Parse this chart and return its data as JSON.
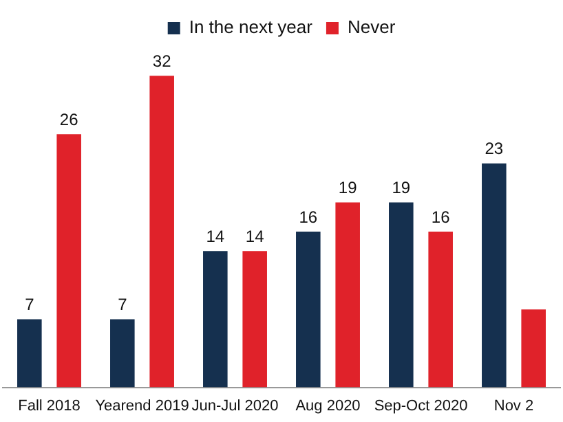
{
  "chart_data": {
    "type": "bar",
    "categories": [
      "Fall 2018",
      "Yearend 2019",
      "Jun-Jul 2020",
      "Aug 2020",
      "Sep-Oct 2020",
      "Nov 2"
    ],
    "series": [
      {
        "name": "In the next year",
        "color": "#15304f",
        "values": [
          7,
          7,
          14,
          16,
          19,
          23
        ],
        "value_labels": [
          "7",
          "7",
          "14",
          "16",
          "19",
          "23"
        ]
      },
      {
        "name": "Never",
        "color": "#e0222a",
        "values": [
          26,
          32,
          14,
          19,
          16,
          8
        ],
        "value_labels": [
          "26",
          "32",
          "14",
          "19",
          "16",
          null
        ]
      }
    ],
    "legend": "top",
    "grid": false
  }
}
